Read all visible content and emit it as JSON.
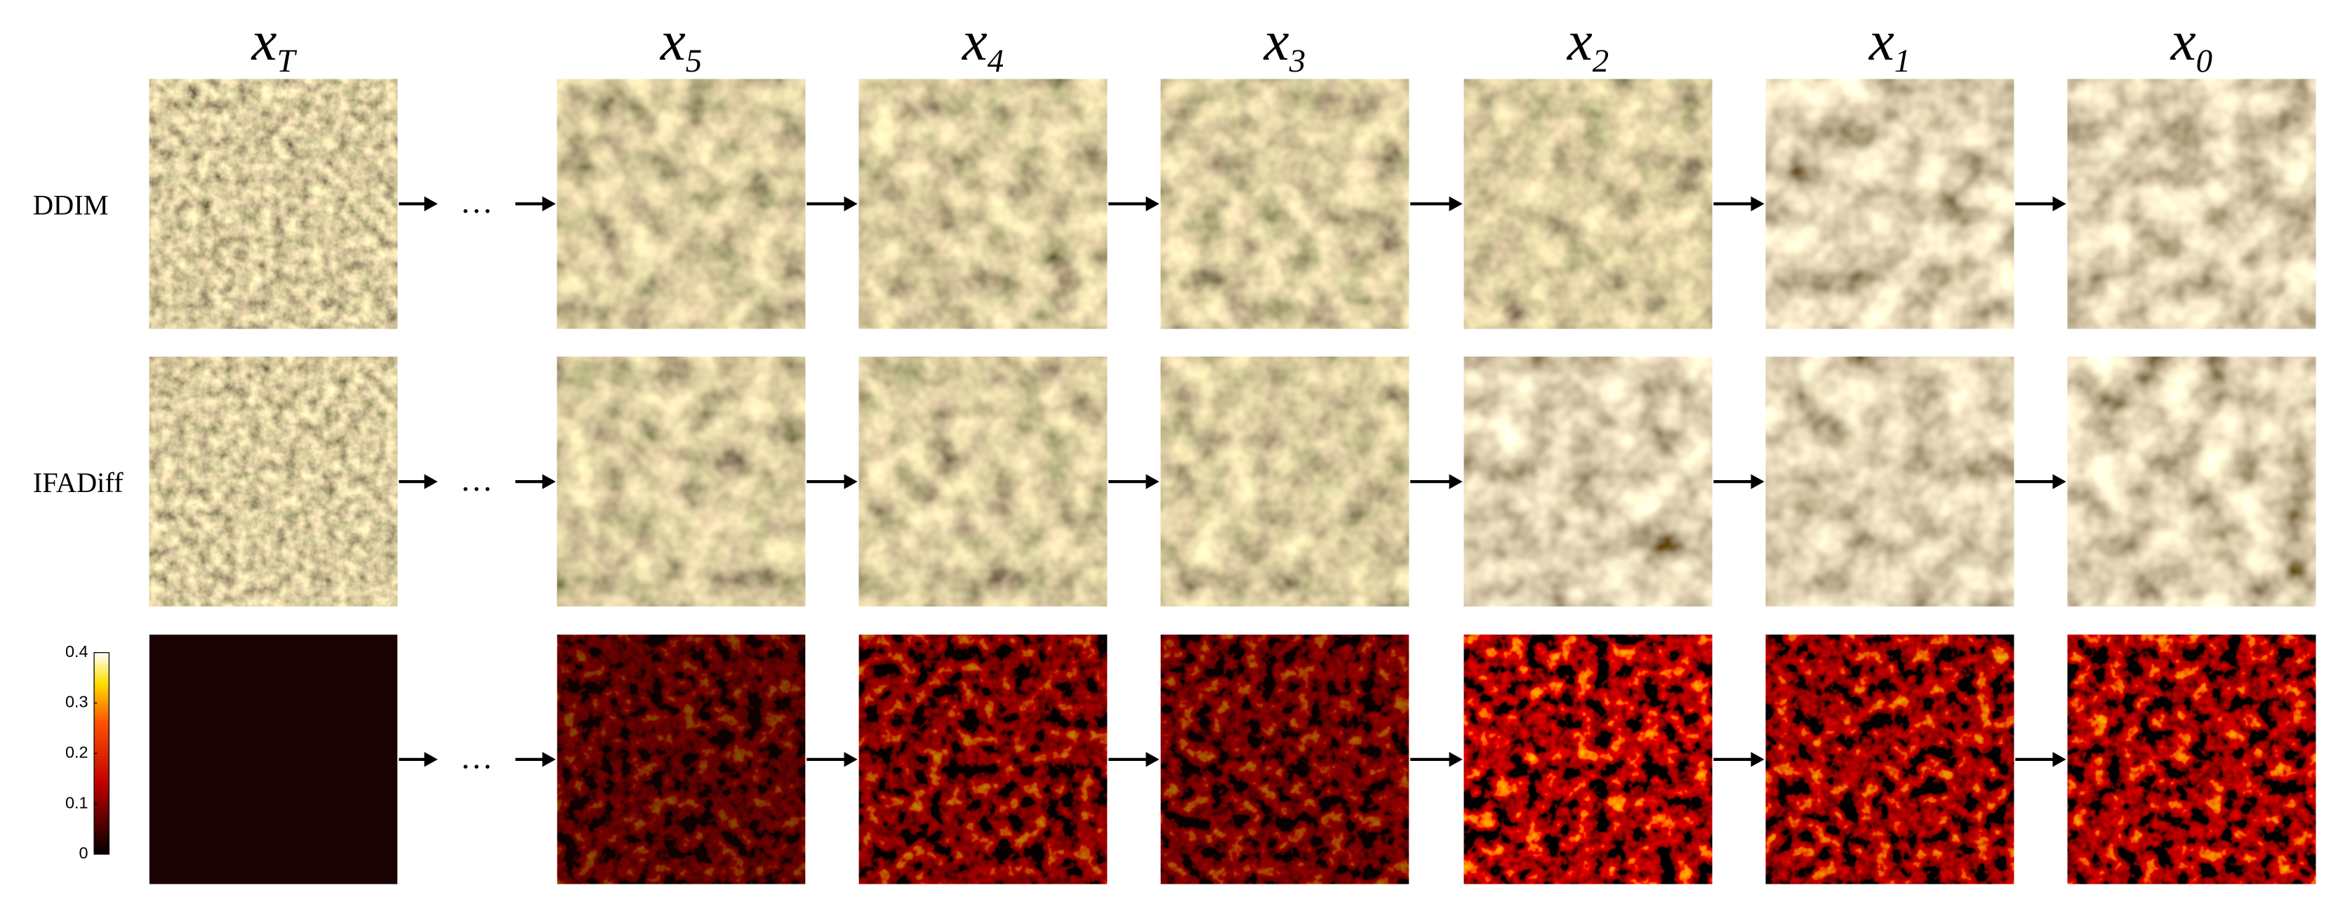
{
  "columns": [
    {
      "symbol": "x",
      "subscript": "T"
    },
    {
      "symbol": "x",
      "subscript": "5"
    },
    {
      "symbol": "x",
      "subscript": "4"
    },
    {
      "symbol": "x",
      "subscript": "3"
    },
    {
      "symbol": "x",
      "subscript": "2"
    },
    {
      "symbol": "x",
      "subscript": "1"
    },
    {
      "symbol": "x",
      "subscript": "0"
    }
  ],
  "rows": [
    "DDIM",
    "IFADiff"
  ],
  "ellipsis": "…",
  "colorbar": {
    "ticks": [
      0,
      0.1,
      0.2,
      0.3,
      0.4
    ]
  }
}
